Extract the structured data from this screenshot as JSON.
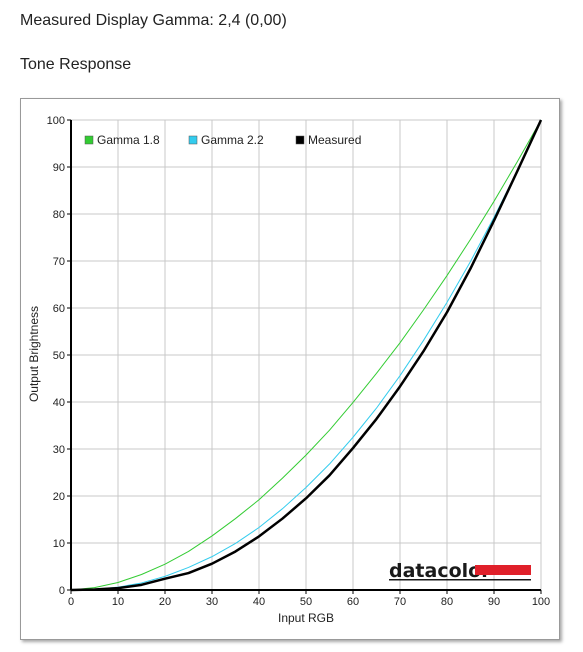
{
  "page": {
    "gamma_heading": "Measured Display Gamma: 2,4 (0,00)",
    "section_heading": "Tone Response"
  },
  "brand": {
    "name": "datacolor",
    "bar_color": "#e0202a"
  },
  "chart_data": {
    "type": "line",
    "title": "",
    "xlabel": "Input RGB",
    "ylabel": "Output Brightness",
    "xlim": [
      0,
      100
    ],
    "ylim": [
      0,
      100
    ],
    "xticks": [
      0,
      10,
      20,
      30,
      40,
      50,
      60,
      70,
      80,
      90,
      100
    ],
    "yticks": [
      0,
      10,
      20,
      30,
      40,
      50,
      60,
      70,
      80,
      90,
      100
    ],
    "grid": true,
    "legend_position": "top-left",
    "x": [
      0,
      5,
      10,
      15,
      20,
      25,
      30,
      35,
      40,
      45,
      50,
      55,
      60,
      65,
      70,
      75,
      80,
      85,
      90,
      95,
      100
    ],
    "series": [
      {
        "name": "Gamma 1.8",
        "color": "#33cc33",
        "width": 1,
        "values": [
          0,
          0.5,
          1.6,
          3.3,
          5.5,
          8.2,
          11.5,
          15.2,
          19.2,
          23.8,
          28.7,
          34.0,
          39.9,
          46.1,
          52.6,
          59.6,
          66.9,
          74.6,
          82.7,
          91.2,
          100
        ]
      },
      {
        "name": "Gamma 2.2",
        "color": "#33ccee",
        "width": 1,
        "values": [
          0,
          0.1,
          0.6,
          1.5,
          2.9,
          4.8,
          7.1,
          9.9,
          13.3,
          17.3,
          21.8,
          26.8,
          32.5,
          38.7,
          45.6,
          53.1,
          61.2,
          69.9,
          79.3,
          89.3,
          100
        ]
      },
      {
        "name": "Measured",
        "color": "#000000",
        "width": 2.5,
        "values": [
          0,
          0.1,
          0.4,
          1.1,
          2.4,
          3.6,
          5.6,
          8.2,
          11.4,
          15.2,
          19.5,
          24.4,
          30.2,
          36.4,
          43.3,
          50.8,
          59.1,
          68.4,
          78.6,
          89.2,
          100
        ]
      }
    ]
  }
}
